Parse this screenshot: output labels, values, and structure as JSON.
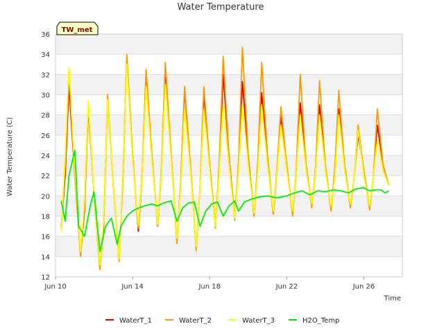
{
  "chart_data": {
    "type": "line",
    "title": "Water Temperature",
    "xlabel": "Time",
    "ylabel": "Water Temperature (C)",
    "site_badge": "TW_met",
    "ylim": [
      12,
      36
    ],
    "yticks": [
      12,
      14,
      16,
      18,
      20,
      22,
      24,
      26,
      28,
      30,
      32,
      34,
      36
    ],
    "xlim_days": [
      10,
      28
    ],
    "xticks": [
      {
        "day": 10,
        "label": "Jun 10"
      },
      {
        "day": 14,
        "label": "Jun 14"
      },
      {
        "day": 18,
        "label": "Jun 18"
      },
      {
        "day": 22,
        "label": "Jun 22"
      },
      {
        "day": 26,
        "label": "Jun 26"
      }
    ],
    "grid": true,
    "legend_position": "bottom",
    "series": [
      {
        "name": "WaterT_1",
        "color": "#dd0000",
        "x": [
          10.3,
          10.5,
          10.7,
          11.0,
          11.3,
          11.5,
          11.7,
          12.0,
          12.3,
          12.5,
          12.7,
          13.0,
          13.3,
          13.5,
          13.7,
          14.0,
          14.3,
          14.5,
          14.7,
          15.0,
          15.3,
          15.5,
          15.7,
          16.0,
          16.3,
          16.5,
          16.7,
          17.0,
          17.3,
          17.5,
          17.7,
          18.0,
          18.3,
          18.5,
          18.7,
          19.0,
          19.3,
          19.5,
          19.7,
          20.0,
          20.3,
          20.5,
          20.7,
          21.0,
          21.3,
          21.5,
          21.7,
          22.0,
          22.3,
          22.5,
          22.7,
          23.0,
          23.3,
          23.5,
          23.7,
          24.0,
          24.3,
          24.5,
          24.7,
          25.0,
          25.3,
          25.5,
          25.7,
          26.0,
          26.3,
          26.5,
          26.7,
          27.0,
          27.3
        ],
        "values": [
          17.0,
          22.0,
          31.0,
          22.0,
          14.2,
          18.5,
          28.8,
          20.0,
          13.0,
          17.0,
          29.5,
          21.0,
          13.8,
          22.0,
          33.5,
          24.0,
          16.5,
          22.0,
          32.3,
          24.0,
          17.0,
          22.5,
          32.6,
          24.0,
          15.5,
          21.5,
          30.5,
          23.0,
          14.8,
          21.0,
          30.0,
          23.0,
          17.0,
          23.0,
          32.0,
          24.0,
          17.8,
          23.0,
          31.3,
          24.0,
          18.0,
          23.0,
          30.2,
          23.5,
          18.2,
          22.5,
          27.8,
          23.0,
          18.2,
          22.5,
          29.2,
          23.0,
          19.0,
          22.5,
          29.0,
          23.0,
          18.7,
          22.5,
          28.6,
          23.0,
          19.0,
          22.0,
          26.0,
          22.5,
          18.8,
          22.0,
          27.0,
          23.0,
          21.0
        ]
      },
      {
        "name": "WaterT_2",
        "color": "#ff9900",
        "x": [
          10.3,
          10.5,
          10.7,
          11.0,
          11.3,
          11.5,
          11.7,
          12.0,
          12.3,
          12.5,
          12.7,
          13.0,
          13.3,
          13.5,
          13.7,
          14.0,
          14.3,
          14.5,
          14.7,
          15.0,
          15.3,
          15.5,
          15.7,
          16.0,
          16.3,
          16.5,
          16.7,
          17.0,
          17.3,
          17.5,
          17.7,
          18.0,
          18.3,
          18.5,
          18.7,
          19.0,
          19.3,
          19.5,
          19.7,
          20.0,
          20.3,
          20.5,
          20.7,
          21.0,
          21.3,
          21.5,
          21.7,
          22.0,
          22.3,
          22.5,
          22.7,
          23.0,
          23.3,
          23.5,
          23.7,
          24.0,
          24.3,
          24.5,
          24.7,
          25.0,
          25.3,
          25.5,
          25.7,
          26.0,
          26.3,
          26.5,
          26.7,
          27.0,
          27.3
        ],
        "values": [
          16.8,
          23.0,
          32.5,
          22.0,
          14.0,
          19.0,
          29.2,
          20.0,
          12.7,
          17.5,
          30.0,
          21.0,
          13.5,
          22.5,
          34.0,
          24.0,
          16.8,
          22.5,
          32.5,
          24.0,
          17.0,
          23.0,
          33.2,
          24.0,
          15.3,
          21.5,
          30.8,
          23.0,
          14.6,
          21.0,
          30.8,
          23.0,
          16.8,
          23.5,
          33.8,
          24.0,
          17.6,
          23.5,
          34.7,
          24.0,
          18.0,
          23.5,
          33.2,
          24.0,
          18.2,
          23.0,
          28.8,
          23.0,
          18.0,
          23.0,
          32.0,
          23.0,
          18.8,
          23.0,
          31.4,
          23.0,
          18.5,
          23.0,
          30.4,
          23.0,
          18.8,
          22.0,
          27.0,
          22.5,
          18.6,
          22.0,
          28.6,
          23.0,
          21.0
        ]
      },
      {
        "name": "WaterT_3",
        "color": "#ffff00",
        "x": [
          10.3,
          10.5,
          10.7,
          11.0,
          11.3,
          11.5,
          11.7,
          12.0,
          12.3,
          12.5,
          12.7,
          13.0,
          13.3,
          13.5,
          13.7,
          14.0,
          14.3,
          14.5,
          14.7,
          15.0,
          15.3,
          15.5,
          15.7,
          16.0,
          16.3,
          16.5,
          16.7,
          17.0,
          17.3,
          17.5,
          17.7,
          18.0,
          18.3,
          18.5,
          18.7,
          19.0,
          19.3,
          19.5,
          19.7,
          20.0,
          20.3,
          20.5,
          20.7,
          21.0,
          21.3,
          21.5,
          21.7,
          22.0,
          22.3,
          22.5,
          22.7,
          23.0,
          23.3,
          23.5,
          23.7,
          24.0,
          24.3,
          24.5,
          24.7,
          25.0,
          25.3,
          25.5,
          25.7,
          26.0,
          26.3,
          26.5,
          26.7,
          27.0,
          27.3
        ],
        "values": [
          16.5,
          24.0,
          32.7,
          22.5,
          14.5,
          19.5,
          29.4,
          20.0,
          13.2,
          17.5,
          29.5,
          21.0,
          13.8,
          22.5,
          33.0,
          23.5,
          17.0,
          22.0,
          30.8,
          23.5,
          17.2,
          22.5,
          31.0,
          23.5,
          15.8,
          21.0,
          28.5,
          22.5,
          15.0,
          21.0,
          28.5,
          22.5,
          17.0,
          22.5,
          29.0,
          23.0,
          17.8,
          22.5,
          29.0,
          23.0,
          18.3,
          22.5,
          29.0,
          23.0,
          18.5,
          22.5,
          27.0,
          22.5,
          18.5,
          22.5,
          28.0,
          22.5,
          19.2,
          22.5,
          28.0,
          22.5,
          19.0,
          22.0,
          28.0,
          22.5,
          19.2,
          22.0,
          26.5,
          22.0,
          19.0,
          22.0,
          25.5,
          22.5,
          21.0
        ]
      },
      {
        "name": "H2O_Temp",
        "color": "#00ee00",
        "x": [
          10.3,
          10.5,
          10.7,
          11.0,
          11.2,
          11.5,
          11.8,
          12.0,
          12.3,
          12.6,
          12.9,
          13.2,
          13.4,
          13.7,
          14.0,
          14.3,
          14.6,
          15.0,
          15.3,
          15.6,
          16.0,
          16.3,
          16.6,
          16.9,
          17.2,
          17.5,
          17.8,
          18.1,
          18.4,
          18.7,
          19.0,
          19.3,
          19.5,
          19.8,
          20.2,
          20.6,
          21.0,
          21.5,
          22.0,
          22.4,
          22.8,
          23.2,
          23.6,
          24.0,
          24.4,
          24.8,
          25.2,
          25.6,
          26.0,
          26.3,
          26.6,
          26.9,
          27.1,
          27.3
        ],
        "values": [
          19.5,
          17.5,
          22.0,
          24.5,
          17.0,
          16.0,
          19.0,
          20.4,
          14.5,
          17.0,
          17.8,
          15.2,
          17.0,
          18.0,
          18.5,
          18.8,
          19.0,
          19.2,
          19.0,
          19.3,
          19.5,
          17.5,
          18.8,
          19.3,
          19.4,
          17.0,
          18.5,
          19.2,
          19.4,
          18.0,
          19.0,
          19.5,
          18.5,
          19.4,
          19.7,
          19.9,
          20.0,
          19.8,
          20.0,
          20.3,
          20.5,
          20.1,
          20.5,
          20.4,
          20.6,
          20.5,
          20.3,
          20.7,
          20.8,
          20.5,
          20.6,
          20.6,
          20.3,
          20.5
        ]
      }
    ]
  }
}
